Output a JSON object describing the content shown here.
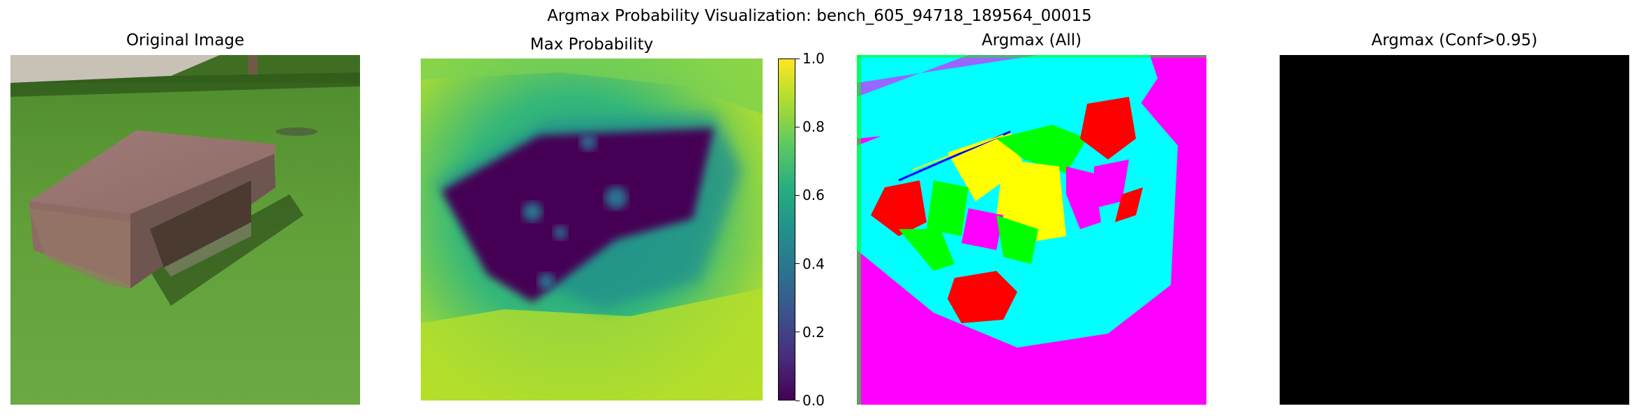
{
  "figure": {
    "suptitle": "Argmax Probability Visualization: bench_605_94718_189564_00015"
  },
  "panels": [
    {
      "title": "Original Image"
    },
    {
      "title": "Max Probability"
    },
    {
      "title": "Argmax (All)"
    },
    {
      "title": "Argmax (Conf>0.95)"
    }
  ],
  "colorbar": {
    "ticks": [
      "1.0",
      "0.8",
      "0.6",
      "0.4",
      "0.2",
      "0.0"
    ],
    "range": [
      0,
      1
    ],
    "colormap": "viridis"
  },
  "palette": {
    "grass": "#5f9a38",
    "bench": "#8a6660",
    "viridis_dark": "#440154",
    "viridis_mid": "#35b779",
    "viridis_bright": "#bddf26",
    "cyan": "#00ffff",
    "magenta": "#ff00ff",
    "red": "#ff0000",
    "green": "#00ff00",
    "yellow": "#ffff00",
    "black": "#000000"
  }
}
